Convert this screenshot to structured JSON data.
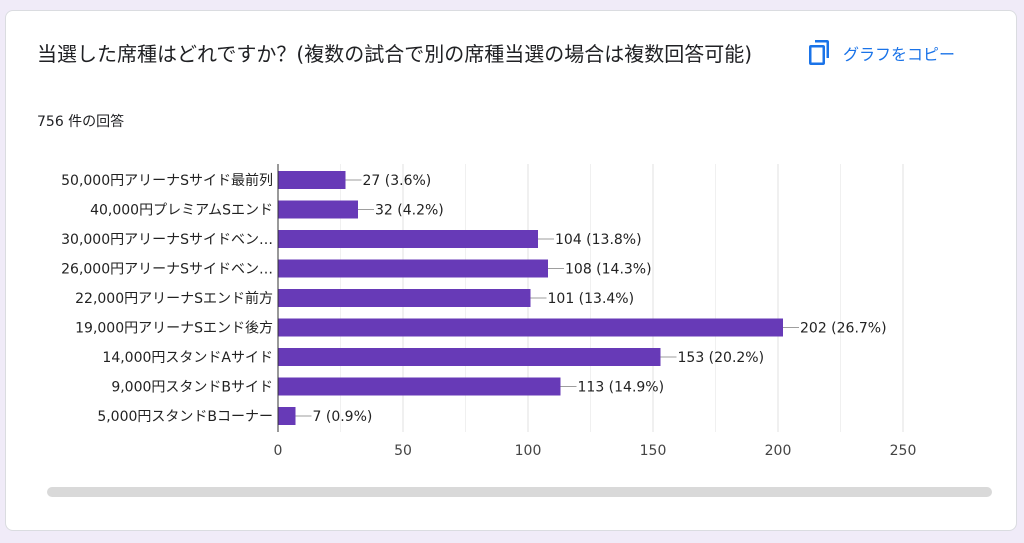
{
  "card": {
    "question": "当選した席種はどれですか？(複数の試合で別の席種当選の場合は複数回答可能)",
    "response_count": "756 件の回答",
    "copy_label": "グラフをコピー",
    "copy_icon": "copy-icon"
  },
  "colors": {
    "bar": "#673ab7",
    "accent": "#1a73e8",
    "background": "#f0ebf8"
  },
  "chart_data": {
    "type": "bar",
    "orientation": "horizontal",
    "categories": [
      "50,000円アリーナSサイド最前列",
      "40,000円プレミアムSエンド",
      "30,000円アリーナSサイドベン…",
      "26,000円アリーナSサイドベン…",
      "22,000円アリーナSエンド前方",
      "19,000円アリーナSエンド後方",
      "14,000円スタンドAサイド",
      "9,000円スタンドBサイド",
      "5,000円スタンドBコーナー"
    ],
    "values": [
      27,
      32,
      104,
      108,
      101,
      202,
      153,
      113,
      7
    ],
    "data_labels": [
      "27 (3.6%)",
      "32 (4.2%)",
      "104 (13.8%)",
      "108 (14.3%)",
      "101 (13.4%)",
      "202 (26.7%)",
      "153 (20.2%)",
      "113 (14.9%)",
      "7 (0.9%)"
    ],
    "xlim": [
      0,
      250
    ],
    "xticks": [
      0,
      50,
      100,
      150,
      200,
      250
    ],
    "grid": true,
    "legend": "none"
  }
}
